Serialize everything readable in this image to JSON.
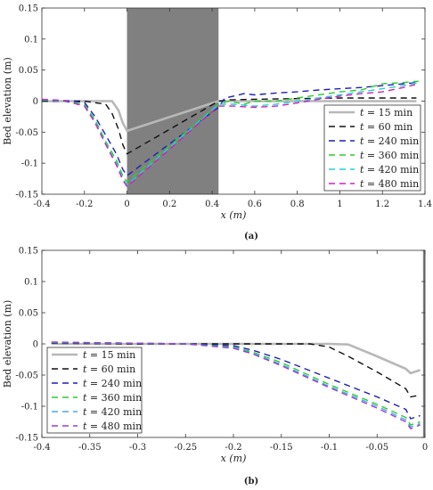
{
  "chart_data": [
    {
      "type": "line",
      "panel_label": "(a)",
      "xlabel": "x (m)",
      "ylabel": "Bed elevation (m)",
      "xlim": [
        -0.4,
        1.4
      ],
      "ylim": [
        -0.15,
        0.15
      ],
      "xticks": [
        -0.4,
        -0.2,
        0,
        0.2,
        0.4,
        0.6,
        0.8,
        1,
        1.2,
        1.4
      ],
      "xtick_labels": [
        "-0.4",
        "-0.2",
        "0",
        "0.2",
        "0.4",
        "0.6",
        "0.8",
        "1",
        "1.2",
        "1.4"
      ],
      "yticks": [
        -0.15,
        -0.1,
        -0.05,
        0,
        0.05,
        0.1,
        0.15
      ],
      "ytick_labels": [
        "-0.15",
        "-0.1",
        "-0.05",
        "0",
        "0.05",
        "0.1",
        "0.15"
      ],
      "grid": false,
      "legend_position": "bottom-right",
      "shaded_region": {
        "x": [
          0,
          0.43
        ],
        "color": "#808080"
      },
      "series": [
        {
          "name": "t = 15 min",
          "legend_var": "t",
          "legend_rest": " = 15 min",
          "color": "#b8b8b8",
          "dash": "solid",
          "x": [
            -0.4,
            -0.1,
            -0.07,
            -0.04,
            -0.02,
            0.0,
            0.43,
            0.6,
            1.0,
            1.36
          ],
          "y": [
            0.0,
            0.0,
            0.0,
            -0.015,
            -0.035,
            -0.048,
            0.0,
            0.0,
            0.0,
            0.0
          ]
        },
        {
          "name": "t = 60 min",
          "legend_var": "t",
          "legend_rest": " = 60 min",
          "color": "#111111",
          "dash": "7,5",
          "x": [
            -0.4,
            -0.2,
            -0.1,
            -0.07,
            -0.04,
            -0.02,
            0.0,
            0.43,
            0.48,
            0.6,
            0.8,
            1.0,
            1.2,
            1.36
          ],
          "y": [
            0.0,
            0.0,
            -0.005,
            -0.02,
            -0.045,
            -0.07,
            -0.085,
            0.0,
            0.002,
            0.003,
            0.004,
            0.005,
            0.005,
            0.005
          ]
        },
        {
          "name": "t = 240 min",
          "legend_var": "t",
          "legend_rest": " = 240 min",
          "color": "#1f1fb8",
          "dash": "7,5",
          "x": [
            -0.4,
            -0.3,
            -0.2,
            -0.15,
            -0.1,
            -0.05,
            -0.02,
            0.0,
            0.43,
            0.46,
            0.5,
            0.55,
            0.6,
            0.7,
            0.8,
            0.9,
            1.0,
            1.1,
            1.2,
            1.3,
            1.37
          ],
          "y": [
            0.002,
            0.001,
            -0.002,
            -0.025,
            -0.055,
            -0.085,
            -0.11,
            -0.12,
            -0.01,
            0.005,
            0.008,
            0.012,
            0.01,
            0.013,
            0.015,
            0.018,
            0.02,
            0.022,
            0.025,
            0.028,
            0.03
          ]
        },
        {
          "name": "t = 360 min",
          "legend_var": "t",
          "legend_rest": " = 360 min",
          "color": "#2ecc2e",
          "dash": "7,5",
          "x": [
            -0.4,
            -0.3,
            -0.2,
            -0.15,
            -0.1,
            -0.05,
            -0.02,
            0.0,
            0.43,
            0.48,
            0.55,
            0.6,
            0.7,
            0.8,
            0.9,
            1.0,
            1.1,
            1.2,
            1.3,
            1.37
          ],
          "y": [
            0.002,
            0.0,
            -0.005,
            -0.03,
            -0.065,
            -0.095,
            -0.12,
            -0.13,
            -0.005,
            0.0,
            -0.005,
            0.0,
            0.0,
            0.005,
            0.01,
            0.015,
            0.018,
            0.028,
            0.03,
            0.032
          ]
        },
        {
          "name": "t = 420 min",
          "legend_var": "t",
          "legend_rest": " = 420 min",
          "color": "#22d0d0",
          "dash": "7,5",
          "x": [
            -0.4,
            -0.3,
            -0.2,
            -0.15,
            -0.1,
            -0.05,
            -0.02,
            0.0,
            0.43,
            0.5,
            0.6,
            0.7,
            0.8,
            0.9,
            1.0,
            1.1,
            1.2,
            1.3,
            1.37
          ],
          "y": [
            0.002,
            0.0,
            -0.007,
            -0.033,
            -0.068,
            -0.1,
            -0.124,
            -0.135,
            -0.005,
            -0.005,
            -0.008,
            -0.005,
            0.0,
            0.005,
            0.01,
            0.015,
            0.02,
            0.025,
            0.03
          ]
        },
        {
          "name": "t = 480 min",
          "legend_var": "t",
          "legend_rest": " = 480 min",
          "color": "#d020c0",
          "dash": "7,5",
          "x": [
            -0.4,
            -0.3,
            -0.2,
            -0.15,
            -0.1,
            -0.05,
            -0.02,
            0.0,
            0.43,
            0.5,
            0.6,
            0.7,
            0.8,
            0.9,
            1.0,
            1.1,
            1.2,
            1.3,
            1.37
          ],
          "y": [
            0.003,
            0.001,
            -0.008,
            -0.035,
            -0.07,
            -0.103,
            -0.127,
            -0.138,
            -0.008,
            -0.008,
            -0.01,
            -0.008,
            -0.003,
            0.003,
            0.008,
            0.012,
            0.015,
            0.022,
            0.028
          ]
        }
      ]
    },
    {
      "type": "line",
      "panel_label": "(b)",
      "xlabel": "x (m)",
      "ylabel": "Bed elevation (m)",
      "xlim": [
        -0.4,
        0
      ],
      "ylim": [
        -0.15,
        0.15
      ],
      "xticks": [
        -0.4,
        -0.35,
        -0.3,
        -0.25,
        -0.2,
        -0.15,
        -0.1,
        -0.05,
        0
      ],
      "xtick_labels": [
        "-0.4",
        "-0.35",
        "-0.3",
        "-0.25",
        "-0.2",
        "-0.15",
        "-0.1",
        "-0.05",
        "0"
      ],
      "yticks": [
        -0.15,
        -0.1,
        -0.05,
        0,
        0.05,
        0.1,
        0.15
      ],
      "ytick_labels": [
        "-0.15",
        "-0.1",
        "-0.05",
        "0",
        "0.05",
        "0.1",
        "0.15"
      ],
      "grid": false,
      "legend_position": "bottom-left",
      "shaded_region": {
        "x": [
          -0.002,
          0
        ],
        "color": "#808080"
      },
      "series": [
        {
          "name": "t = 15 min",
          "legend_var": "t",
          "legend_rest": " = 15 min",
          "color": "#b8b8b8",
          "dash": "solid",
          "x": [
            -0.39,
            -0.3,
            -0.2,
            -0.1,
            -0.08,
            -0.05,
            -0.02,
            -0.015,
            -0.005
          ],
          "y": [
            0.0,
            0.0,
            0.0,
            0.0,
            -0.001,
            -0.02,
            -0.04,
            -0.047,
            -0.042
          ]
        },
        {
          "name": "t = 60 min",
          "legend_var": "t",
          "legend_rest": " = 60 min",
          "color": "#111111",
          "dash": "7,5",
          "x": [
            -0.39,
            -0.3,
            -0.2,
            -0.15,
            -0.12,
            -0.1,
            -0.08,
            -0.05,
            -0.02,
            -0.015,
            -0.005
          ],
          "y": [
            0.001,
            0.0,
            0.0,
            0.0,
            0.0,
            -0.005,
            -0.02,
            -0.045,
            -0.072,
            -0.085,
            -0.082
          ]
        },
        {
          "name": "t = 240 min",
          "legend_var": "t",
          "legend_rest": " = 240 min",
          "color": "#1f1fb8",
          "dash": "7,5",
          "x": [
            -0.39,
            -0.3,
            -0.25,
            -0.2,
            -0.18,
            -0.15,
            -0.1,
            -0.05,
            -0.02,
            -0.015,
            -0.005
          ],
          "y": [
            0.002,
            0.001,
            0.0,
            -0.003,
            -0.01,
            -0.025,
            -0.055,
            -0.085,
            -0.105,
            -0.12,
            -0.115
          ]
        },
        {
          "name": "t = 360 min",
          "legend_var": "t",
          "legend_rest": " = 360 min",
          "color": "#2ecc2e",
          "dash": "7,5",
          "x": [
            -0.39,
            -0.3,
            -0.25,
            -0.2,
            -0.18,
            -0.15,
            -0.1,
            -0.05,
            -0.02,
            -0.015,
            -0.005
          ],
          "y": [
            0.002,
            0.001,
            0.0,
            -0.005,
            -0.013,
            -0.03,
            -0.065,
            -0.097,
            -0.118,
            -0.13,
            -0.125
          ]
        },
        {
          "name": "t = 420 min",
          "legend_var": "t",
          "legend_rest": " = 420 min",
          "color": "#4aa8e8",
          "dash": "7,5",
          "x": [
            -0.39,
            -0.3,
            -0.25,
            -0.2,
            -0.18,
            -0.15,
            -0.1,
            -0.05,
            -0.02,
            -0.015,
            -0.005
          ],
          "y": [
            0.002,
            0.001,
            0.0,
            -0.006,
            -0.015,
            -0.033,
            -0.068,
            -0.1,
            -0.122,
            -0.133,
            -0.128
          ]
        },
        {
          "name": "t = 480 min",
          "legend_var": "t",
          "legend_rest": " = 480 min",
          "color": "#9b3fd0",
          "dash": "7,5",
          "x": [
            -0.39,
            -0.3,
            -0.25,
            -0.2,
            -0.18,
            -0.15,
            -0.1,
            -0.05,
            -0.02,
            -0.015,
            -0.005
          ],
          "y": [
            0.003,
            0.001,
            0.0,
            -0.007,
            -0.016,
            -0.035,
            -0.07,
            -0.103,
            -0.125,
            -0.136,
            -0.13
          ]
        }
      ]
    }
  ]
}
